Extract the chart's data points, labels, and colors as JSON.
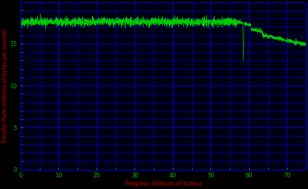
{
  "xlabel": "Progress (billions of bytes)",
  "ylabel": "Transfer Rate (millions of bytes per second)",
  "background_color": "#000000",
  "plot_bg_color": "#000015",
  "grid_color": "#0000dd",
  "line_color": "#00cc00",
  "axis_label_color": "#cc0000",
  "tick_label_color": "#00bb00",
  "xlim": [
    0,
    75
  ],
  "ylim": [
    0,
    20
  ],
  "xticks": [
    0,
    10,
    20,
    30,
    40,
    50,
    60,
    70
  ],
  "yticks": [
    0,
    5,
    10,
    15
  ],
  "base_level": 17.6,
  "noise_amplitude": 0.25,
  "drop_start_x": 57,
  "drop_end_x": 75,
  "drop_end_level": 15.8,
  "spike_x": 58.5,
  "spike_low": 13.0,
  "step1_x": 60.5,
  "step1_level": 16.8,
  "step2_x": 63.5,
  "step2_level": 16.3,
  "n_points": 3000,
  "xlabel_fontsize": 6,
  "ylabel_fontsize": 5.5,
  "tick_fontsize": 6
}
